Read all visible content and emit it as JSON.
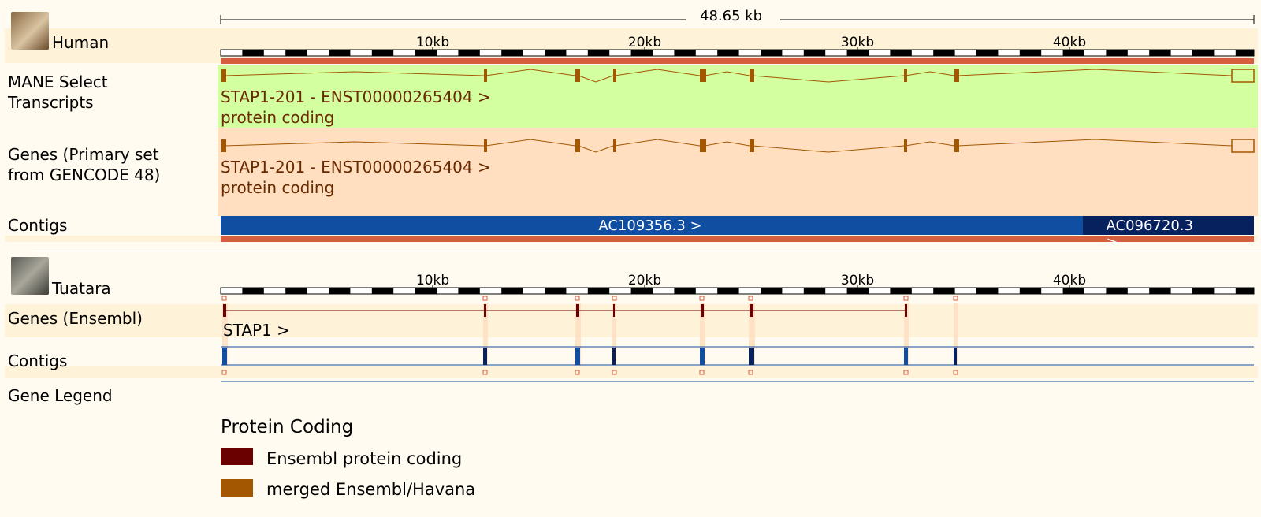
{
  "scale": {
    "label": "48.65 kb"
  },
  "human": {
    "species": "Human",
    "ticks": [
      "10kb",
      "20kb",
      "30kb",
      "40kb"
    ],
    "tracks": {
      "mane": {
        "label_line1": "MANE Select",
        "label_line2": "Transcripts",
        "transcript": "STAP1-201 - ENST00000265404 >",
        "biotype": "protein coding"
      },
      "genes": {
        "label_line1": "Genes (Primary set",
        "label_line2": "from GENCODE 48)",
        "transcript": "STAP1-201 - ENST00000265404 >",
        "biotype": "protein coding"
      },
      "contigs": {
        "label": "Contigs",
        "contig1": "AC109356.3 >",
        "contig2": "AC096720.3 >"
      }
    }
  },
  "tuatara": {
    "species": "Tuatara",
    "ticks": [
      "10kb",
      "20kb",
      "30kb",
      "40kb"
    ],
    "tracks": {
      "genes": {
        "label": "Genes (Ensembl)",
        "gene": "STAP1 >"
      },
      "contigs": {
        "label": "Contigs"
      }
    }
  },
  "legend": {
    "label": "Gene Legend",
    "section": "Protein Coding",
    "items": [
      {
        "label": "Ensembl protein coding",
        "color": "#6b0000"
      },
      {
        "label": "merged Ensembl/Havana",
        "color": "#a35700"
      }
    ]
  },
  "colors": {
    "mane_bg": "#d4ffa0",
    "genes_bg": "#ffdfc0",
    "species_band": "#fef3d9",
    "contig_blue": "#0f4ea0",
    "contig_dark": "#07205e",
    "red_bar": "#d45e3e",
    "exon_orange": "#a35700",
    "exon_dark": "#6b0000"
  }
}
